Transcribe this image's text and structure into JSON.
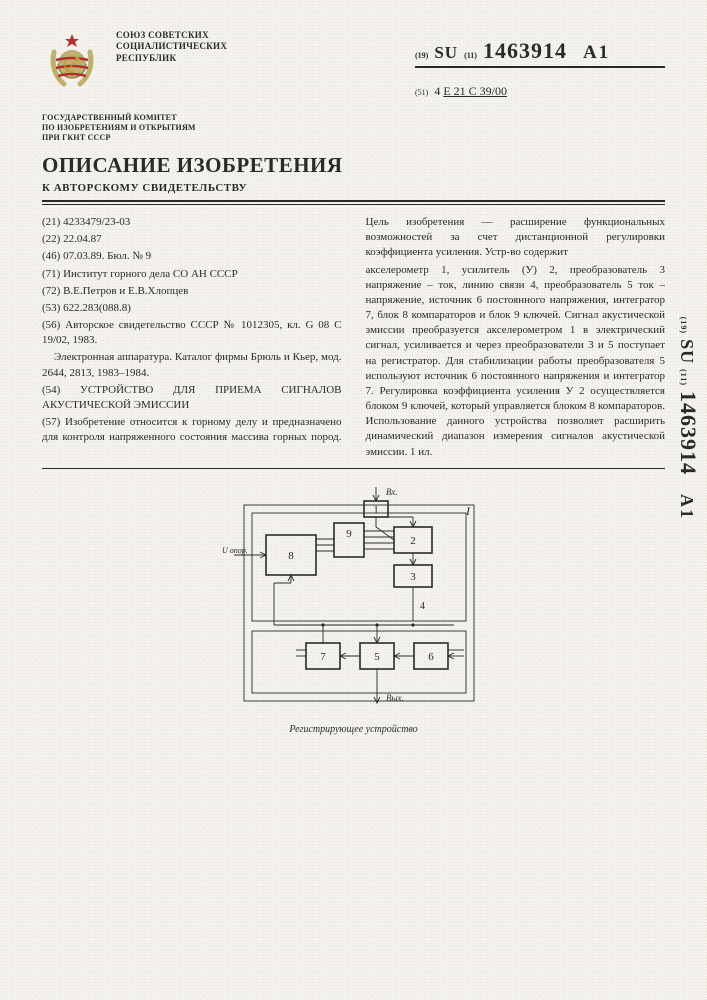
{
  "issuer": {
    "line1": "СОЮЗ СОВЕТСКИХ",
    "line2": "СОЦИАЛИСТИЧЕСКИХ",
    "line3": "РЕСПУБЛИК"
  },
  "pub": {
    "prefix19": "(19)",
    "code": "SU",
    "prefix11": "(11)",
    "number": "1463914",
    "suffix": "A1",
    "prefix51": "(51)",
    "ipc_intro": "4",
    "ipc": "E 21 C 39/00"
  },
  "committee": {
    "line1": "ГОСУДАРСТВЕННЫЙ КОМИТЕТ",
    "line2": "ПО ИЗОБРЕТЕНИЯМ И ОТКРЫТИЯМ",
    "line3": "ПРИ ГКНТ СССР"
  },
  "titles": {
    "main": "ОПИСАНИЕ ИЗОБРЕТЕНИЯ",
    "sub": "К АВТОРСКОМУ СВИДЕТЕЛЬСТВУ"
  },
  "biblio": {
    "f21": "(21) 4233479/23-03",
    "f22": "(22) 22.04.87",
    "f46": "(46) 07.03.89. Бюл. № 9",
    "f71": "(71) Институт горного дела СО АН СССР",
    "f72": "(72) В.Е.Петров и Е.В.Хлопцев",
    "f53": "(53) 622.283(088.8)",
    "f56a": "(56) Авторское свидетельство СССР № 1012305, кл. G 08 C 19/02, 1983.",
    "f56b": "Электронная аппаратура. Каталог фирмы Брюль и Кьер, мод. 2644, 2813, 1983–1984.",
    "f54": "(54) УСТРОЙСТВО ДЛЯ ПРИЕМА СИГНАЛОВ АКУСТИЧЕСКОЙ ЭМИССИИ",
    "f57": "(57) Изобретение относится к горному делу и предназначено для контроля напряженного состояния массива горных пород. Цель изобретения — расширение функциональных возможностей за счет дистанционной регулировки коэффициента усиления. Устр-во содержит",
    "col2": "акселерометр 1, усилитель (У) 2, преобразователь 3 напряжение – ток, линию связи 4, преобразователь 5 ток – напряжение, источник 6 постоянного напряжения, интегратор 7, блок 8 компараторов и блок 9 ключей. Сигнал акустической эмиссии преобразуется акселерометром 1 в электрический сигнал, усиливается и через преобразователи 3 и 5 поступает на регистратор. Для стабилизации работы преобразователя 5 используют источник 6 постоянного напряжения и интегратор 7. Регулировка коэффициента усиления У 2 осуществляется блоком 9 ключей, который управляется блоком 8 компараторов. Использование данного устройства позволяет расширить динамический диапазон измерения сигналов акустической эмиссии. 1 ил."
  },
  "diagram": {
    "outer_group": "I",
    "nodes": {
      "1": "1",
      "2": "2",
      "3": "3",
      "4": "4",
      "5": "5",
      "6": "6",
      "7": "7",
      "8": "8",
      "9": "9"
    },
    "inlabel": "Вх.",
    "ulabel": "U опор.",
    "outlabel": "Вых.",
    "caption": "Регистрирующее устройство",
    "stroke": "#2a2a2a",
    "stroke_w": 1.6,
    "thin_w": 0.9,
    "font": "11px"
  },
  "emblem": {
    "globe": "#c0b070",
    "wreath": "#c0b070",
    "ribbon": "#b03030",
    "star": "#b03030"
  }
}
